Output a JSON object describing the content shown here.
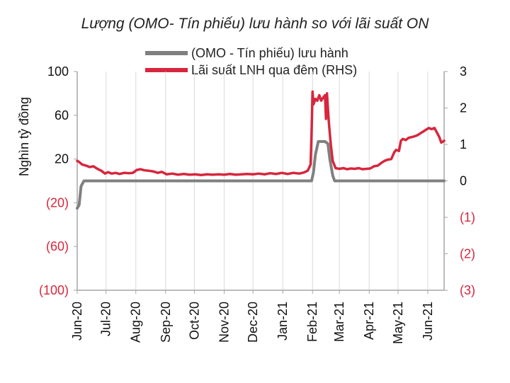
{
  "chart_data": {
    "type": "line",
    "title": "Lượng (OMO- Tín phiếu) lưu hành so với lãi suất ON",
    "ylabel": "Nghìn tỷ đồng",
    "y2label": "",
    "ylim": [
      -100,
      100
    ],
    "y2lim": [
      -3,
      3
    ],
    "yticks": [
      {
        "value": 100,
        "label": "100"
      },
      {
        "value": 60,
        "label": "60"
      },
      {
        "value": 20,
        "label": "20"
      },
      {
        "value": -20,
        "label": "(20)"
      },
      {
        "value": -60,
        "label": "(60)"
      },
      {
        "value": -100,
        "label": "(100)"
      }
    ],
    "y2ticks": [
      {
        "value": 3,
        "label": "3"
      },
      {
        "value": 2,
        "label": "2"
      },
      {
        "value": 1,
        "label": "1"
      },
      {
        "value": 0,
        "label": "0"
      },
      {
        "value": -1,
        "label": "(1)"
      },
      {
        "value": -2,
        "label": "(2)"
      },
      {
        "value": -3,
        "label": "(3)"
      }
    ],
    "xlim": [
      "2020-06-01",
      "2021-06-18"
    ],
    "xticks": [
      {
        "date": "2020-06-01",
        "label": "Jun-20"
      },
      {
        "date": "2020-07-01",
        "label": "Jul-20"
      },
      {
        "date": "2020-08-01",
        "label": "Aug-20"
      },
      {
        "date": "2020-09-01",
        "label": "Sep-20"
      },
      {
        "date": "2020-10-01",
        "label": "Oct-20"
      },
      {
        "date": "2020-11-01",
        "label": "Nov-20"
      },
      {
        "date": "2020-12-01",
        "label": "Dec-20"
      },
      {
        "date": "2021-01-01",
        "label": "Jan-21"
      },
      {
        "date": "2021-02-01",
        "label": "Feb-21"
      },
      {
        "date": "2021-03-01",
        "label": "Mar-21"
      },
      {
        "date": "2021-04-01",
        "label": "Apr-21"
      },
      {
        "date": "2021-05-01",
        "label": "May-21"
      },
      {
        "date": "2021-06-01",
        "label": "Jun-21"
      }
    ],
    "grid": "vertical",
    "legend_position": "top",
    "colors": {
      "omo": "#808080",
      "rate": "#d7263d",
      "left_axis_negative": "#d7263d",
      "right_axis_negative": "#d7263d",
      "axis_positive": "#111111"
    },
    "series": [
      {
        "name": "(OMO - Tín phiếu) lưu hành",
        "axis": "left",
        "points": [
          [
            "2020-06-01",
            -25
          ],
          [
            "2020-06-03",
            -22
          ],
          [
            "2020-06-05",
            -5
          ],
          [
            "2020-06-08",
            0
          ],
          [
            "2020-07-15",
            0
          ],
          [
            "2020-10-01",
            0
          ],
          [
            "2021-01-01",
            0
          ],
          [
            "2021-01-31",
            0
          ],
          [
            "2021-02-02",
            8
          ],
          [
            "2021-02-04",
            24
          ],
          [
            "2021-02-07",
            36
          ],
          [
            "2021-02-14",
            36
          ],
          [
            "2021-02-17",
            34
          ],
          [
            "2021-02-19",
            20
          ],
          [
            "2021-02-22",
            5
          ],
          [
            "2021-02-24",
            0
          ],
          [
            "2021-04-01",
            0
          ],
          [
            "2021-05-01",
            0
          ],
          [
            "2021-06-18",
            0
          ]
        ]
      },
      {
        "name": "Lãi suất LNH qua đêm (RHS)",
        "axis": "right",
        "points": [
          [
            "2020-06-01",
            0.55
          ],
          [
            "2020-06-03",
            0.52
          ],
          [
            "2020-06-06",
            0.45
          ],
          [
            "2020-06-10",
            0.42
          ],
          [
            "2020-06-14",
            0.38
          ],
          [
            "2020-06-18",
            0.4
          ],
          [
            "2020-06-22",
            0.33
          ],
          [
            "2020-06-26",
            0.28
          ],
          [
            "2020-06-30",
            0.2
          ],
          [
            "2020-07-03",
            0.24
          ],
          [
            "2020-07-07",
            0.2
          ],
          [
            "2020-07-11",
            0.22
          ],
          [
            "2020-07-15",
            0.19
          ],
          [
            "2020-07-20",
            0.22
          ],
          [
            "2020-07-25",
            0.21
          ],
          [
            "2020-07-29",
            0.22
          ],
          [
            "2020-08-02",
            0.3
          ],
          [
            "2020-08-06",
            0.32
          ],
          [
            "2020-08-10",
            0.29
          ],
          [
            "2020-08-14",
            0.28
          ],
          [
            "2020-08-19",
            0.26
          ],
          [
            "2020-08-24",
            0.22
          ],
          [
            "2020-08-28",
            0.25
          ],
          [
            "2020-09-02",
            0.18
          ],
          [
            "2020-09-08",
            0.2
          ],
          [
            "2020-09-14",
            0.17
          ],
          [
            "2020-09-20",
            0.19
          ],
          [
            "2020-09-26",
            0.17
          ],
          [
            "2020-10-02",
            0.18
          ],
          [
            "2020-10-08",
            0.16
          ],
          [
            "2020-10-14",
            0.18
          ],
          [
            "2020-10-20",
            0.17
          ],
          [
            "2020-10-26",
            0.18
          ],
          [
            "2020-11-01",
            0.17
          ],
          [
            "2020-11-07",
            0.19
          ],
          [
            "2020-11-13",
            0.17
          ],
          [
            "2020-11-19",
            0.18
          ],
          [
            "2020-11-25",
            0.19
          ],
          [
            "2020-12-01",
            0.18
          ],
          [
            "2020-12-07",
            0.2
          ],
          [
            "2020-12-13",
            0.18
          ],
          [
            "2020-12-19",
            0.21
          ],
          [
            "2020-12-25",
            0.19
          ],
          [
            "2020-12-31",
            0.22
          ],
          [
            "2021-01-06",
            0.19
          ],
          [
            "2021-01-12",
            0.22
          ],
          [
            "2021-01-18",
            0.2
          ],
          [
            "2021-01-23",
            0.23
          ],
          [
            "2021-01-27",
            0.28
          ],
          [
            "2021-01-30",
            0.45
          ],
          [
            "2021-01-31",
            1.3
          ],
          [
            "2021-02-01",
            2.45
          ],
          [
            "2021-02-02",
            2.1
          ],
          [
            "2021-02-04",
            2.25
          ],
          [
            "2021-02-06",
            2.2
          ],
          [
            "2021-02-08",
            2.35
          ],
          [
            "2021-02-10",
            2.2
          ],
          [
            "2021-02-12",
            2.28
          ],
          [
            "2021-02-14",
            2.35
          ],
          [
            "2021-02-15",
            1.7
          ],
          [
            "2021-02-16",
            2.4
          ],
          [
            "2021-02-18",
            1.6
          ],
          [
            "2021-02-20",
            1.0
          ],
          [
            "2021-02-22",
            0.55
          ],
          [
            "2021-02-25",
            0.35
          ],
          [
            "2021-03-01",
            0.33
          ],
          [
            "2021-03-05",
            0.35
          ],
          [
            "2021-03-09",
            0.32
          ],
          [
            "2021-03-13",
            0.34
          ],
          [
            "2021-03-17",
            0.33
          ],
          [
            "2021-03-21",
            0.35
          ],
          [
            "2021-03-25",
            0.32
          ],
          [
            "2021-03-29",
            0.33
          ],
          [
            "2021-04-02",
            0.34
          ],
          [
            "2021-04-06",
            0.4
          ],
          [
            "2021-04-10",
            0.42
          ],
          [
            "2021-04-14",
            0.5
          ],
          [
            "2021-04-17",
            0.55
          ],
          [
            "2021-04-20",
            0.58
          ],
          [
            "2021-04-24",
            0.6
          ],
          [
            "2021-04-27",
            0.78
          ],
          [
            "2021-04-29",
            0.85
          ],
          [
            "2021-05-02",
            0.82
          ],
          [
            "2021-05-04",
            1.1
          ],
          [
            "2021-05-06",
            1.15
          ],
          [
            "2021-05-09",
            1.12
          ],
          [
            "2021-05-12",
            1.18
          ],
          [
            "2021-05-15",
            1.2
          ],
          [
            "2021-05-18",
            1.22
          ],
          [
            "2021-05-21",
            1.25
          ],
          [
            "2021-05-24",
            1.3
          ],
          [
            "2021-05-27",
            1.35
          ],
          [
            "2021-05-30",
            1.4
          ],
          [
            "2021-06-02",
            1.45
          ],
          [
            "2021-06-05",
            1.42
          ],
          [
            "2021-06-08",
            1.45
          ],
          [
            "2021-06-10",
            1.35
          ],
          [
            "2021-06-13",
            1.2
          ],
          [
            "2021-06-15",
            1.05
          ],
          [
            "2021-06-18",
            1.1
          ]
        ]
      }
    ]
  }
}
